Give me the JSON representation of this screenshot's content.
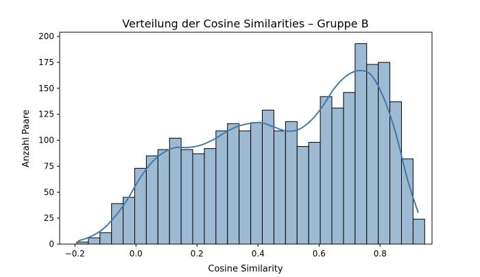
{
  "chart_data": {
    "type": "bar",
    "title": "Verteilung der Cosine Similarities – Gruppe B",
    "xlabel": "Cosine Similarity",
    "ylabel": "Anzahl Paare",
    "xlim": [
      -0.25,
      0.97
    ],
    "ylim": [
      0,
      204
    ],
    "xticks": [
      -0.2,
      0.0,
      0.2,
      0.4,
      0.6,
      0.8
    ],
    "xtick_labels": [
      "−0.2",
      "0.0",
      "0.2",
      "0.4",
      "0.6",
      "0.8"
    ],
    "yticks": [
      0,
      25,
      50,
      75,
      100,
      125,
      150,
      175,
      200
    ],
    "ytick_labels": [
      "0",
      "25",
      "50",
      "75",
      "100",
      "125",
      "150",
      "175",
      "200"
    ],
    "bins": [
      {
        "x0": -0.194,
        "x1": -0.156,
        "count": 2
      },
      {
        "x0": -0.156,
        "x1": -0.118,
        "count": 6
      },
      {
        "x0": -0.118,
        "x1": -0.08,
        "count": 11
      },
      {
        "x0": -0.08,
        "x1": -0.042,
        "count": 39
      },
      {
        "x0": -0.042,
        "x1": -0.004,
        "count": 45
      },
      {
        "x0": -0.004,
        "x1": 0.034,
        "count": 73
      },
      {
        "x0": 0.034,
        "x1": 0.072,
        "count": 85
      },
      {
        "x0": 0.072,
        "x1": 0.11,
        "count": 91
      },
      {
        "x0": 0.11,
        "x1": 0.148,
        "count": 102
      },
      {
        "x0": 0.148,
        "x1": 0.186,
        "count": 91
      },
      {
        "x0": 0.186,
        "x1": 0.224,
        "count": 87
      },
      {
        "x0": 0.224,
        "x1": 0.262,
        "count": 92
      },
      {
        "x0": 0.262,
        "x1": 0.3,
        "count": 109
      },
      {
        "x0": 0.3,
        "x1": 0.338,
        "count": 116
      },
      {
        "x0": 0.338,
        "x1": 0.376,
        "count": 109
      },
      {
        "x0": 0.376,
        "x1": 0.414,
        "count": 117
      },
      {
        "x0": 0.414,
        "x1": 0.452,
        "count": 129
      },
      {
        "x0": 0.452,
        "x1": 0.49,
        "count": 109
      },
      {
        "x0": 0.49,
        "x1": 0.528,
        "count": 118
      },
      {
        "x0": 0.528,
        "x1": 0.566,
        "count": 94
      },
      {
        "x0": 0.566,
        "x1": 0.604,
        "count": 98
      },
      {
        "x0": 0.604,
        "x1": 0.642,
        "count": 142
      },
      {
        "x0": 0.642,
        "x1": 0.68,
        "count": 131
      },
      {
        "x0": 0.68,
        "x1": 0.718,
        "count": 146
      },
      {
        "x0": 0.718,
        "x1": 0.756,
        "count": 193
      },
      {
        "x0": 0.756,
        "x1": 0.794,
        "count": 173
      },
      {
        "x0": 0.794,
        "x1": 0.832,
        "count": 175
      },
      {
        "x0": 0.832,
        "x1": 0.87,
        "count": 137
      },
      {
        "x0": 0.87,
        "x1": 0.908,
        "count": 82
      },
      {
        "x0": 0.908,
        "x1": 0.946,
        "count": 24
      }
    ],
    "kde": {
      "x": [
        -0.19,
        -0.15,
        -0.11,
        -0.07,
        -0.03,
        0.01,
        0.05,
        0.09,
        0.13,
        0.17,
        0.21,
        0.25,
        0.29,
        0.33,
        0.37,
        0.41,
        0.45,
        0.49,
        0.53,
        0.57,
        0.61,
        0.65,
        0.69,
        0.73,
        0.77,
        0.81,
        0.85,
        0.89,
        0.925
      ],
      "y": [
        3,
        7,
        14,
        26,
        42,
        62,
        78,
        88,
        93,
        93,
        95,
        100,
        107,
        113,
        116,
        117,
        113,
        109,
        110,
        118,
        132,
        150,
        162,
        167,
        163,
        142,
        108,
        62,
        30
      ]
    },
    "bar_color": "#9dbad3",
    "bar_edge_color": "#000000",
    "kde_color": "#4179ae",
    "grid": false,
    "legend": "none"
  }
}
